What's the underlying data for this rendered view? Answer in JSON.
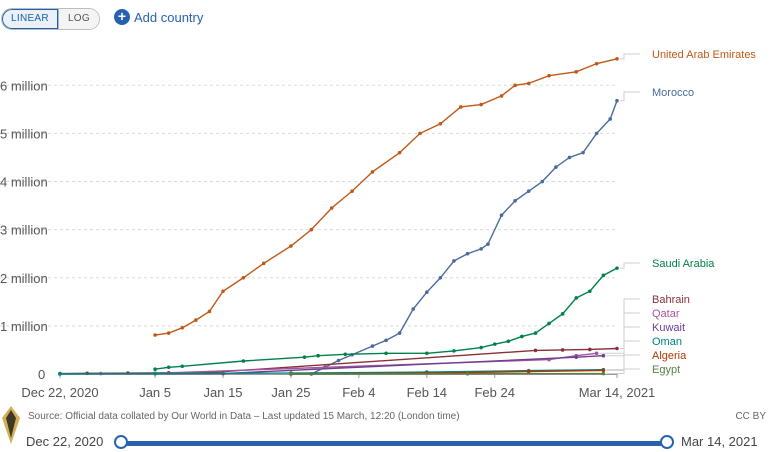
{
  "controls": {
    "linear_label": "LINEAR",
    "log_label": "LOG",
    "add_country_label": "Add country"
  },
  "footer": {
    "source": "Source: Official data collated by Our World in Data – Last updated 15 March, 12:20 (London time)",
    "license": "CC BY"
  },
  "timeline": {
    "start_label": "Dec 22, 2020",
    "end_label": "Mar 14, 2021"
  },
  "chart_data": {
    "type": "line",
    "x_axis": {
      "type": "date",
      "range": [
        "2020-12-22",
        "2021-03-14"
      ],
      "tick_labels": [
        "Dec 22, 2020",
        "Jan 5",
        "Jan 15",
        "Jan 25",
        "Feb 4",
        "Feb 14",
        "Feb 24",
        "Mar 14, 2021"
      ],
      "tick_dates": [
        "2020-12-22",
        "2021-01-05",
        "2021-01-15",
        "2021-01-25",
        "2021-02-04",
        "2021-02-14",
        "2021-02-24",
        "2021-03-14"
      ]
    },
    "y_axis": {
      "range": [
        0,
        6900000
      ],
      "ticks": [
        0,
        1000000,
        2000000,
        3000000,
        4000000,
        5000000,
        6000000
      ],
      "tick_labels": [
        "0",
        "1 million",
        "2 million",
        "3 million",
        "4 million",
        "5 million",
        "6 million"
      ]
    },
    "grid": "horizontal dashed",
    "legend": "right, end-of-line labels",
    "series": [
      {
        "name": "United Arab Emirates",
        "color": "#c05917",
        "points": [
          [
            "2021-01-05",
            810000
          ],
          [
            "2021-01-07",
            850000
          ],
          [
            "2021-01-09",
            960000
          ],
          [
            "2021-01-11",
            1120000
          ],
          [
            "2021-01-13",
            1300000
          ],
          [
            "2021-01-15",
            1720000
          ],
          [
            "2021-01-18",
            2000000
          ],
          [
            "2021-01-21",
            2300000
          ],
          [
            "2021-01-25",
            2660000
          ],
          [
            "2021-01-28",
            3000000
          ],
          [
            "2021-01-31",
            3450000
          ],
          [
            "2021-02-03",
            3800000
          ],
          [
            "2021-02-06",
            4200000
          ],
          [
            "2021-02-10",
            4600000
          ],
          [
            "2021-02-13",
            5000000
          ],
          [
            "2021-02-16",
            5200000
          ],
          [
            "2021-02-19",
            5550000
          ],
          [
            "2021-02-22",
            5600000
          ],
          [
            "2021-02-25",
            5780000
          ],
          [
            "2021-02-27",
            6000000
          ],
          [
            "2021-03-01",
            6040000
          ],
          [
            "2021-03-04",
            6200000
          ],
          [
            "2021-03-08",
            6280000
          ],
          [
            "2021-03-11",
            6450000
          ],
          [
            "2021-03-14",
            6550000
          ]
        ]
      },
      {
        "name": "Morocco",
        "color": "#4c6a9c",
        "points": [
          [
            "2021-01-28",
            0
          ],
          [
            "2021-01-30",
            140000
          ],
          [
            "2021-02-01",
            280000
          ],
          [
            "2021-02-03",
            400000
          ],
          [
            "2021-02-06",
            580000
          ],
          [
            "2021-02-08",
            700000
          ],
          [
            "2021-02-10",
            850000
          ],
          [
            "2021-02-12",
            1350000
          ],
          [
            "2021-02-14",
            1700000
          ],
          [
            "2021-02-16",
            2000000
          ],
          [
            "2021-02-18",
            2350000
          ],
          [
            "2021-02-20",
            2500000
          ],
          [
            "2021-02-22",
            2600000
          ],
          [
            "2021-02-23",
            2700000
          ],
          [
            "2021-02-25",
            3300000
          ],
          [
            "2021-02-27",
            3600000
          ],
          [
            "2021-03-01",
            3800000
          ],
          [
            "2021-03-03",
            4000000
          ],
          [
            "2021-03-05",
            4300000
          ],
          [
            "2021-03-07",
            4500000
          ],
          [
            "2021-03-09",
            4600000
          ],
          [
            "2021-03-11",
            5000000
          ],
          [
            "2021-03-13",
            5300000
          ],
          [
            "2021-03-14",
            5680000
          ]
        ]
      },
      {
        "name": "Saudi Arabia",
        "color": "#00804a",
        "points": [
          [
            "2021-01-05",
            100000
          ],
          [
            "2021-01-07",
            140000
          ],
          [
            "2021-01-09",
            160000
          ],
          [
            "2021-01-18",
            270000
          ],
          [
            "2021-01-27",
            350000
          ],
          [
            "2021-01-29",
            380000
          ],
          [
            "2021-02-02",
            410000
          ],
          [
            "2021-02-08",
            430000
          ],
          [
            "2021-02-14",
            430000
          ],
          [
            "2021-02-18",
            480000
          ],
          [
            "2021-02-22",
            550000
          ],
          [
            "2021-02-24",
            620000
          ],
          [
            "2021-02-26",
            680000
          ],
          [
            "2021-02-28",
            780000
          ],
          [
            "2021-03-02",
            850000
          ],
          [
            "2021-03-04",
            1050000
          ],
          [
            "2021-03-06",
            1250000
          ],
          [
            "2021-03-08",
            1580000
          ],
          [
            "2021-03-10",
            1720000
          ],
          [
            "2021-03-12",
            2050000
          ],
          [
            "2021-03-14",
            2200000
          ]
        ]
      },
      {
        "name": "Bahrain",
        "color": "#883039",
        "points": [
          [
            "2020-12-22",
            10000
          ],
          [
            "2020-12-26",
            15000
          ],
          [
            "2021-01-01",
            20000
          ],
          [
            "2021-01-07",
            25000
          ],
          [
            "2021-01-13",
            30000
          ],
          [
            "2021-03-02",
            490000
          ],
          [
            "2021-03-06",
            500000
          ],
          [
            "2021-03-10",
            510000
          ],
          [
            "2021-03-14",
            530000
          ]
        ]
      },
      {
        "name": "Qatar",
        "color": "#a2559c",
        "points": [
          [
            "2020-12-22",
            5000
          ],
          [
            "2020-12-28",
            10000
          ],
          [
            "2021-01-05",
            15000
          ],
          [
            "2021-03-04",
            300000
          ],
          [
            "2021-03-08",
            380000
          ],
          [
            "2021-03-11",
            430000
          ]
        ]
      },
      {
        "name": "Kuwait",
        "color": "#6d3e91",
        "points": [
          [
            "2020-12-22",
            3000
          ],
          [
            "2021-01-05",
            8000
          ],
          [
            "2021-01-15",
            10000
          ],
          [
            "2021-03-08",
            350000
          ],
          [
            "2021-03-12",
            380000
          ]
        ]
      },
      {
        "name": "Oman",
        "color": "#00847e",
        "points": [
          [
            "2020-12-22",
            2000
          ],
          [
            "2021-01-05",
            8000
          ],
          [
            "2021-01-25",
            20000
          ],
          [
            "2021-02-14",
            40000
          ],
          [
            "2021-03-01",
            70000
          ],
          [
            "2021-03-12",
            90000
          ]
        ]
      },
      {
        "name": "Algeria",
        "color": "#b13507",
        "points": [
          [
            "2021-01-25",
            0
          ],
          [
            "2021-02-14",
            20000
          ],
          [
            "2021-03-01",
            50000
          ],
          [
            "2021-03-12",
            75000
          ]
        ]
      },
      {
        "name": "Egypt",
        "color": "#578145",
        "points": [
          [
            "2021-01-25",
            0
          ],
          [
            "2021-02-20",
            5000
          ],
          [
            "2021-03-12",
            10000
          ]
        ]
      }
    ]
  }
}
